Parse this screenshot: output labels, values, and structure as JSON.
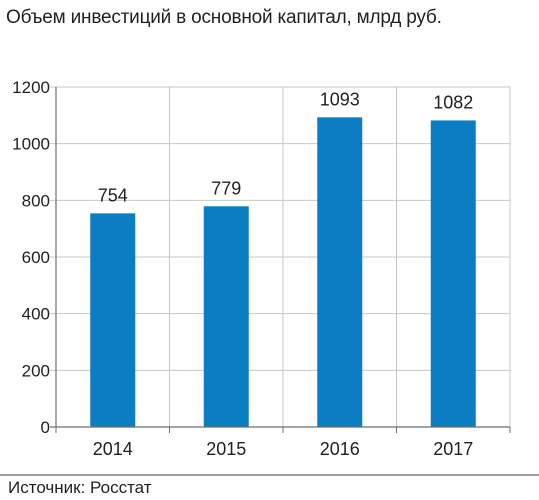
{
  "source": "Источник: Росстат",
  "colors": {
    "bar": "#0b7dc3",
    "grid": "#c6c8ca",
    "axis": "#6d6e71",
    "text": "#231f20",
    "divider": "#9d9d9d"
  },
  "chart_data": {
    "type": "bar",
    "title": "Объем инвестиций в основной капитал, млрд руб.",
    "categories": [
      "2014",
      "2015",
      "2016",
      "2017"
    ],
    "values": [
      754,
      779,
      1093,
      1082
    ],
    "ylim": [
      0,
      1200
    ],
    "yticks": [
      0,
      200,
      400,
      600,
      800,
      1000,
      1200
    ],
    "grid": true,
    "data_labels": true
  }
}
